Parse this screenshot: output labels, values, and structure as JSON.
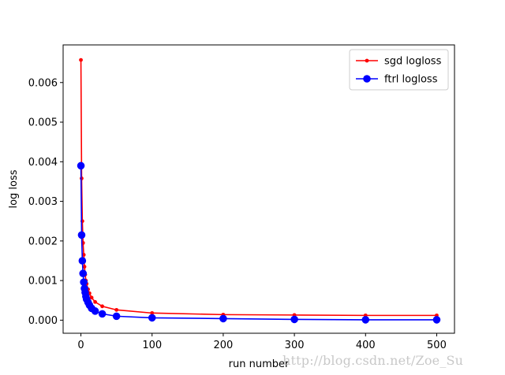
{
  "chart_data": {
    "type": "line",
    "title": "",
    "xlabel": "run number",
    "ylabel": "log loss",
    "xlim": [
      -25,
      525
    ],
    "ylim": [
      -0.00033,
      0.00695
    ],
    "xticks": [
      0,
      100,
      200,
      300,
      400,
      500
    ],
    "yticks": [
      0.0,
      0.001,
      0.002,
      0.003,
      0.004,
      0.005,
      0.006
    ],
    "ytick_labels": [
      "0.000",
      "0.001",
      "0.002",
      "0.003",
      "0.004",
      "0.005",
      "0.006"
    ],
    "grid": false,
    "legend": "top-right",
    "series": [
      {
        "name": "sgd logloss",
        "color": "#ff0000",
        "marker": "small-dot",
        "x": [
          0,
          1,
          2,
          3,
          4,
          5,
          6,
          7,
          8,
          10,
          12,
          15,
          20,
          30,
          50,
          100,
          200,
          300,
          400,
          500
        ],
        "y": [
          0.00657,
          0.00358,
          0.0025,
          0.00195,
          0.00165,
          0.00135,
          0.00115,
          0.001,
          0.00092,
          0.00078,
          0.00068,
          0.00057,
          0.00046,
          0.00035,
          0.00026,
          0.00018,
          0.00014,
          0.00013,
          0.00012,
          0.00012
        ]
      },
      {
        "name": "ftrl logloss",
        "color": "#0000ff",
        "marker": "large-dot",
        "x": [
          0,
          1,
          2,
          3,
          4,
          5,
          6,
          7,
          8,
          10,
          12,
          15,
          20,
          30,
          50,
          100,
          200,
          300,
          400,
          500
        ],
        "y": [
          0.0039,
          0.00215,
          0.0015,
          0.00118,
          0.00096,
          0.0008,
          0.0007,
          0.0006,
          0.00053,
          0.00045,
          0.00038,
          0.0003,
          0.00023,
          0.00016,
          0.0001,
          6e-05,
          4e-05,
          2e-05,
          1e-05,
          1e-05
        ]
      }
    ]
  },
  "watermark": "http://blog.csdn.net/Zoe_Su"
}
